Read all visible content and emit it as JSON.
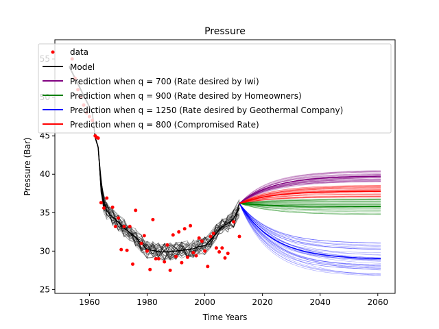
{
  "chart_data": {
    "type": "line",
    "title": "Pressure",
    "xlabel": "Time Years",
    "ylabel": "Pressure (Bar)",
    "xlim": [
      1948,
      2066
    ],
    "ylim": [
      24.5,
      57.5
    ],
    "xticks": [
      1960,
      1980,
      2000,
      2020,
      2040,
      2060
    ],
    "yticks": [
      25,
      30,
      35,
      40,
      45,
      50,
      55
    ],
    "legend_position": "upper-left",
    "grid": false,
    "data_points": {
      "name": "data",
      "color": "#ff0000",
      "x": [
        1954,
        1955,
        1956,
        1957,
        1958,
        1959,
        1960,
        1961,
        1962,
        1962.5,
        1963,
        1964,
        1965,
        1966,
        1968,
        1969,
        1970,
        1971,
        1972,
        1973,
        1974,
        1975,
        1976,
        1978,
        1979,
        1980,
        1981,
        1982,
        1983,
        1984,
        1986,
        1987,
        1988,
        1989,
        1990,
        1991,
        1992,
        1993,
        1994,
        1995,
        1996,
        1997,
        1998,
        1999,
        2000,
        2001,
        2002,
        2003,
        2004,
        2005,
        2006,
        2007,
        2008,
        2010,
        2012
      ],
      "y": [
        55.0,
        52.5,
        51.0,
        50.0,
        49.0,
        48.0,
        47.5,
        47.0,
        45.0,
        44.8,
        44.7,
        36.3,
        35.6,
        36.9,
        35.7,
        33.2,
        34.3,
        30.2,
        33.2,
        30.1,
        33.2,
        28.3,
        35.3,
        31.0,
        32.0,
        30.0,
        27.6,
        34.1,
        29.0,
        29.0,
        28.6,
        30.8,
        27.5,
        32.1,
        29.3,
        32.5,
        28.5,
        32.9,
        29.2,
        33.3,
        29.8,
        29.4,
        31.7,
        31.3,
        30.0,
        28.0,
        31.9,
        32.3,
        30.4,
        29.9,
        30.4,
        29.1,
        29.7,
        33.8,
        31.9
      ]
    },
    "model": {
      "name": "Model",
      "color": "#000000",
      "x": [
        1953,
        1955,
        1957,
        1959,
        1961,
        1962,
        1963,
        1964,
        1965,
        1966,
        1968,
        1970,
        1972,
        1974,
        1976,
        1978,
        1980,
        1982,
        1984,
        1986,
        1988,
        1990,
        1992,
        1994,
        1996,
        1998,
        2000,
        2002,
        2004,
        2006,
        2008,
        2010,
        2012
      ],
      "y": [
        54.0,
        52.5,
        51.0,
        49.5,
        48.0,
        44.8,
        43.5,
        38.5,
        36.2,
        35.2,
        34.4,
        33.8,
        33.0,
        32.4,
        31.8,
        31.0,
        30.2,
        30.1,
        29.9,
        29.9,
        29.9,
        30.0,
        30.1,
        30.2,
        30.3,
        30.6,
        30.7,
        31.4,
        32.3,
        33.2,
        33.6,
        34.2,
        35.6
      ]
    },
    "predictions": [
      {
        "name": "Prediction when q = 700 (Rate desired by Iwi)",
        "color": "#800080",
        "start": [
          2012,
          36.2
        ],
        "end": 39.8,
        "spread": 0.8
      },
      {
        "name": "Prediction when q = 900 (Rate desired by Homeowners)",
        "color": "#008000",
        "start": [
          2012,
          36.2
        ],
        "end": 35.8,
        "spread": 0.8
      },
      {
        "name": "Prediction when q = 1250 (Rate desired by Geothermal Company)",
        "color": "#0000ff",
        "start": [
          2012,
          36.2
        ],
        "end": 28.9,
        "spread": 1.6
      },
      {
        "name": "Prediction when q = 800 (Compromised Rate)",
        "color": "#ff0000",
        "start": [
          2012,
          36.2
        ],
        "end": 37.8,
        "spread": 0.8
      }
    ]
  }
}
